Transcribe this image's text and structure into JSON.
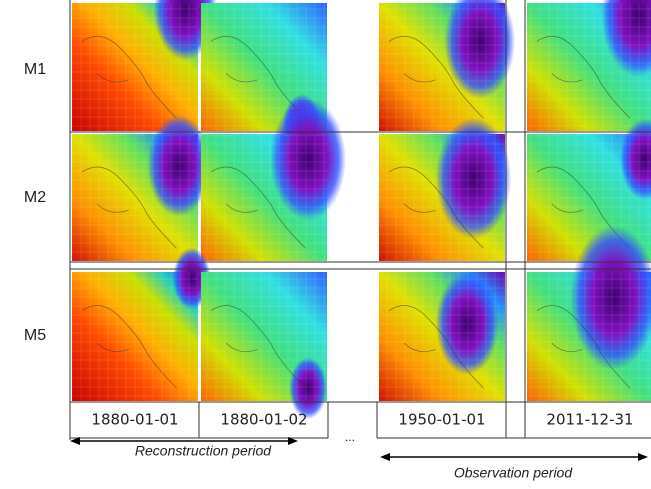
{
  "rows": [
    {
      "label": "M1"
    },
    {
      "label": "M2"
    },
    {
      "label": "M5"
    }
  ],
  "dates": [
    "1880-01-01",
    "1880-01-02",
    "1950-01-01",
    "2011-12-31"
  ],
  "ellipsis": "...",
  "periods": {
    "reconstruction": "Reconstruction period",
    "observation": "Observation period"
  }
}
